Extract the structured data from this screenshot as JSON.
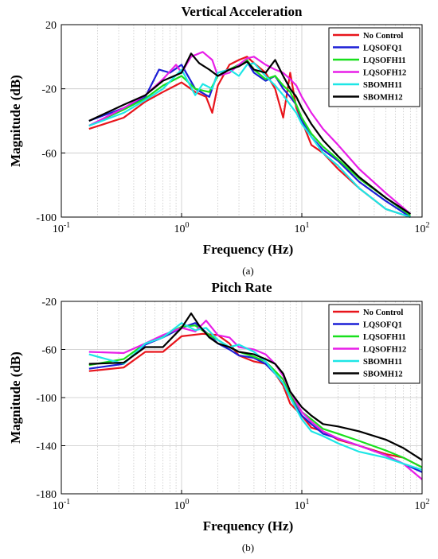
{
  "chart_data": [
    {
      "type": "line",
      "title": "Vertical Acceleration",
      "xlabel": "Frequency (Hz)",
      "ylabel": "Magnitude (dB)",
      "caption": "(a)",
      "xscale": "log",
      "xlim": [
        0.1,
        100
      ],
      "ylim": [
        -100,
        20
      ],
      "xticks": [
        "10^-1",
        "10^0",
        "10^1",
        "10^2"
      ],
      "yticks": [
        "20",
        "-20",
        "-60",
        "-100"
      ],
      "grid": true,
      "legend_position": "top-right",
      "series": [
        {
          "name": "No Control",
          "color": "#e8141b",
          "x": [
            0.17,
            0.33,
            0.5,
            0.7,
            1.0,
            1.3,
            1.6,
            1.8,
            2.0,
            2.5,
            3.0,
            3.5,
            4.0,
            5.0,
            6.0,
            7.0,
            8.0,
            9.0,
            10,
            12,
            15,
            20,
            30,
            50,
            80
          ],
          "y": [
            -45,
            -38,
            -28,
            -22,
            -16,
            -22,
            -25,
            -35,
            -18,
            -5,
            -2,
            0,
            -4,
            -10,
            -20,
            -38,
            -10,
            -32,
            -40,
            -55,
            -60,
            -70,
            -82,
            -95,
            -100
          ]
        },
        {
          "name": "LQSOFQ1",
          "color": "#1c1fd6",
          "x": [
            0.17,
            0.33,
            0.5,
            0.65,
            0.8,
            1.0,
            1.3,
            1.7,
            2.0,
            2.5,
            3.0,
            3.5,
            4.0,
            5.0,
            6.0,
            7.0,
            8.0,
            9.0,
            10,
            12,
            15,
            20,
            30,
            50,
            80
          ],
          "y": [
            -40,
            -32,
            -25,
            -8,
            -10,
            -5,
            -20,
            -25,
            -10,
            -8,
            -5,
            -3,
            -10,
            -15,
            -12,
            -20,
            -25,
            -30,
            -40,
            -50,
            -58,
            -65,
            -78,
            -90,
            -100
          ]
        },
        {
          "name": "LQSOFH11",
          "color": "#18e01c",
          "x": [
            0.17,
            0.33,
            0.5,
            0.7,
            1.0,
            1.3,
            1.7,
            2.0,
            2.5,
            3.0,
            3.5,
            4.0,
            5.0,
            6.0,
            7.0,
            8.0,
            9.0,
            10,
            12,
            15,
            20,
            30,
            50,
            80
          ],
          "y": [
            -43,
            -33,
            -26,
            -18,
            -12,
            -20,
            -22,
            -12,
            -8,
            -5,
            -2,
            -8,
            -14,
            -12,
            -18,
            -22,
            -30,
            -38,
            -48,
            -56,
            -64,
            -76,
            -88,
            -99
          ]
        },
        {
          "name": "LQSOFH12",
          "color": "#e81ee8",
          "x": [
            0.17,
            0.33,
            0.5,
            0.7,
            0.9,
            1.0,
            1.2,
            1.5,
            1.8,
            2.0,
            2.5,
            3.0,
            3.5,
            4.0,
            5.0,
            6.0,
            7.0,
            8.0,
            9.0,
            10,
            12,
            15,
            20,
            30,
            50,
            80
          ],
          "y": [
            -43,
            -32,
            -24,
            -14,
            -5,
            -10,
            0,
            3,
            -2,
            -12,
            -10,
            -5,
            -1,
            0,
            -5,
            -8,
            -10,
            -14,
            -18,
            -25,
            -35,
            -45,
            -55,
            -70,
            -85,
            -98
          ]
        },
        {
          "name": "SBOMH11",
          "color": "#1de6e6",
          "x": [
            0.17,
            0.33,
            0.5,
            0.7,
            1.0,
            1.3,
            1.5,
            1.8,
            2.0,
            2.5,
            3.0,
            3.5,
            4.0,
            5.0,
            6.0,
            7.0,
            8.0,
            9.0,
            10,
            12,
            15,
            20,
            30,
            50,
            80
          ],
          "y": [
            -43,
            -35,
            -27,
            -20,
            -8,
            -24,
            -17,
            -20,
            -10,
            -8,
            -12,
            -5,
            -4,
            -12,
            -18,
            -24,
            -30,
            -35,
            -42,
            -50,
            -60,
            -68,
            -82,
            -95,
            -100
          ]
        },
        {
          "name": "SBOMH12",
          "color": "#000000",
          "x": [
            0.17,
            0.33,
            0.5,
            0.7,
            1.0,
            1.2,
            1.4,
            1.7,
            2.0,
            2.5,
            3.0,
            3.5,
            4.0,
            5.0,
            6.0,
            7.0,
            8.0,
            9.0,
            10,
            12,
            15,
            20,
            30,
            50,
            80
          ],
          "y": [
            -40,
            -30,
            -24,
            -15,
            -10,
            2,
            -4,
            -8,
            -12,
            -8,
            -6,
            -3,
            -8,
            -10,
            -2,
            -12,
            -20,
            -25,
            -32,
            -42,
            -52,
            -62,
            -75,
            -88,
            -98
          ]
        }
      ]
    },
    {
      "type": "line",
      "title": "Pitch Rate",
      "xlabel": "Frequency (Hz)",
      "ylabel": "Magnitude (dB)",
      "caption": "(b)",
      "xscale": "log",
      "xlim": [
        0.1,
        100
      ],
      "ylim": [
        -180,
        -20
      ],
      "xticks": [
        "10^-1",
        "10^0",
        "10^1",
        "10^2"
      ],
      "yticks": [
        "-20",
        "-60",
        "-100",
        "-140",
        "-180"
      ],
      "grid": true,
      "legend_position": "top-right",
      "series": [
        {
          "name": "No Control",
          "color": "#e8141b",
          "x": [
            0.17,
            0.33,
            0.5,
            0.7,
            1.0,
            1.5,
            2.0,
            2.5,
            3.0,
            4.0,
            5.0,
            6.0,
            7.0,
            8.0,
            10,
            12,
            15,
            20,
            30,
            50,
            70,
            100
          ],
          "y": [
            -78,
            -75,
            -62,
            -62,
            -49,
            -47,
            -48,
            -55,
            -65,
            -70,
            -72,
            -80,
            -90,
            -105,
            -115,
            -125,
            -128,
            -135,
            -140,
            -147,
            -150,
            -158
          ]
        },
        {
          "name": "LQSOFQ1",
          "color": "#1c1fd6",
          "x": [
            0.17,
            0.33,
            0.5,
            0.7,
            1.0,
            1.3,
            1.7,
            2.0,
            2.5,
            3.0,
            4.0,
            5.0,
            6.0,
            7.0,
            8.0,
            10,
            12,
            15,
            20,
            30,
            50,
            70,
            100
          ],
          "y": [
            -76,
            -72,
            -56,
            -50,
            -42,
            -38,
            -48,
            -55,
            -60,
            -65,
            -67,
            -72,
            -80,
            -88,
            -100,
            -115,
            -122,
            -130,
            -134,
            -140,
            -148,
            -155,
            -162
          ]
        },
        {
          "name": "LQSOFH11",
          "color": "#18e01c",
          "x": [
            0.17,
            0.33,
            0.5,
            0.7,
            1.0,
            1.3,
            1.7,
            2.0,
            2.5,
            3.0,
            4.0,
            5.0,
            6.0,
            7.0,
            8.0,
            10,
            12,
            15,
            20,
            30,
            50,
            70,
            100
          ],
          "y": [
            -73,
            -68,
            -55,
            -49,
            -41,
            -40,
            -48,
            -52,
            -58,
            -62,
            -66,
            -70,
            -78,
            -85,
            -98,
            -112,
            -118,
            -126,
            -130,
            -136,
            -144,
            -150,
            -158
          ]
        },
        {
          "name": "LQSOFH12",
          "color": "#e81ee8",
          "x": [
            0.17,
            0.33,
            0.5,
            0.7,
            1.0,
            1.3,
            1.6,
            2.0,
            2.5,
            3.0,
            4.0,
            5.0,
            6.0,
            7.0,
            8.0,
            10,
            12,
            15,
            20,
            30,
            50,
            70,
            100
          ],
          "y": [
            -62,
            -63,
            -55,
            -48,
            -42,
            -45,
            -36,
            -48,
            -50,
            -58,
            -60,
            -64,
            -72,
            -82,
            -95,
            -112,
            -120,
            -128,
            -134,
            -140,
            -148,
            -155,
            -168
          ]
        },
        {
          "name": "SBOMH11",
          "color": "#1de6e6",
          "x": [
            0.17,
            0.33,
            0.5,
            0.7,
            1.0,
            1.3,
            1.6,
            2.0,
            2.5,
            3.0,
            4.0,
            5.0,
            6.0,
            7.0,
            8.0,
            10,
            12,
            15,
            20,
            30,
            50,
            70,
            100
          ],
          "y": [
            -64,
            -72,
            -55,
            -50,
            -38,
            -44,
            -42,
            -52,
            -58,
            -56,
            -62,
            -70,
            -80,
            -88,
            -100,
            -118,
            -128,
            -132,
            -138,
            -145,
            -150,
            -155,
            -160
          ]
        },
        {
          "name": "SBOMH12",
          "color": "#000000",
          "x": [
            0.17,
            0.33,
            0.5,
            0.7,
            1.0,
            1.2,
            1.4,
            1.7,
            2.0,
            2.5,
            3.0,
            4.0,
            5.0,
            6.0,
            7.0,
            8.0,
            10,
            12,
            15,
            20,
            30,
            50,
            70,
            100
          ],
          "y": [
            -72,
            -71,
            -58,
            -58,
            -42,
            -30,
            -40,
            -50,
            -55,
            -58,
            -62,
            -64,
            -68,
            -72,
            -80,
            -95,
            -108,
            -115,
            -122,
            -124,
            -128,
            -135,
            -142,
            -152
          ]
        }
      ]
    }
  ]
}
